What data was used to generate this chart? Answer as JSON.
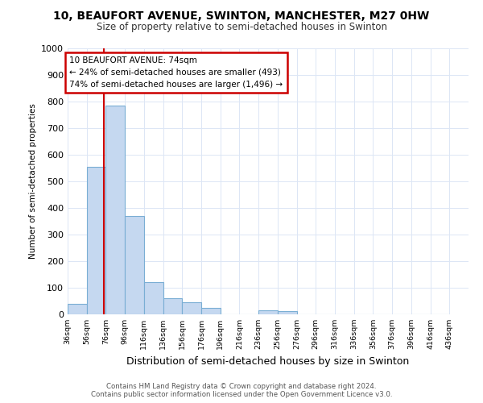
{
  "title_line1": "10, BEAUFORT AVENUE, SWINTON, MANCHESTER, M27 0HW",
  "title_line2": "Size of property relative to semi-detached houses in Swinton",
  "xlabel": "Distribution of semi-detached houses by size in Swinton",
  "ylabel": "Number of semi-detached properties",
  "footnote": "Contains HM Land Registry data © Crown copyright and database right 2024.\nContains public sector information licensed under the Open Government Licence v3.0.",
  "property_label": "10 BEAUFORT AVENUE: 74sqm",
  "annotation_line2": "← 24% of semi-detached houses are smaller (493)",
  "annotation_line3": "74% of semi-detached houses are larger (1,496) →",
  "bin_edges": [
    36,
    56,
    76,
    96,
    116,
    136,
    156,
    176,
    196,
    216,
    236,
    256,
    276,
    296,
    316,
    336,
    356,
    376,
    396,
    416,
    436
  ],
  "bar_heights": [
    40,
    555,
    785,
    370,
    120,
    60,
    45,
    25,
    0,
    0,
    15,
    12,
    0,
    0,
    0,
    0,
    0,
    0,
    0,
    0
  ],
  "bar_color": "#c5d8f0",
  "bar_edge_color": "#7aaed4",
  "red_line_x": 74,
  "annotation_box_color": "#cc0000",
  "grid_color": "#dce6f5",
  "ylim": [
    0,
    1000
  ],
  "yticks": [
    0,
    100,
    200,
    300,
    400,
    500,
    600,
    700,
    800,
    900,
    1000
  ]
}
